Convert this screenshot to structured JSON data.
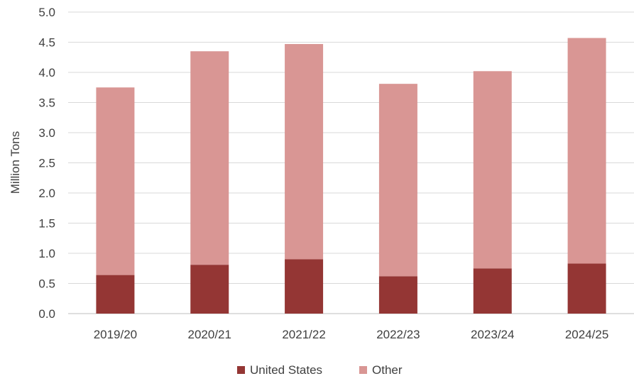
{
  "chart_data": {
    "type": "bar",
    "stacked": true,
    "title": "",
    "xlabel": "",
    "ylabel": "Million Tons",
    "categories": [
      "2019/20",
      "2020/21",
      "2021/22",
      "2022/23",
      "2023/24",
      "2024/25"
    ],
    "series": [
      {
        "name": "United States",
        "color": "#943634",
        "values": [
          0.64,
          0.81,
          0.9,
          0.62,
          0.75,
          0.83
        ]
      },
      {
        "name": "Other",
        "color": "#D99694",
        "values": [
          3.11,
          3.54,
          3.57,
          3.19,
          3.27,
          3.74
        ]
      }
    ],
    "ylim": [
      0,
      5.0
    ],
    "yticks": [
      "0.0",
      "0.5",
      "1.0",
      "1.5",
      "2.0",
      "2.5",
      "3.0",
      "3.5",
      "4.0",
      "4.5",
      "5.0"
    ],
    "grid": true,
    "legend": "bottom"
  }
}
